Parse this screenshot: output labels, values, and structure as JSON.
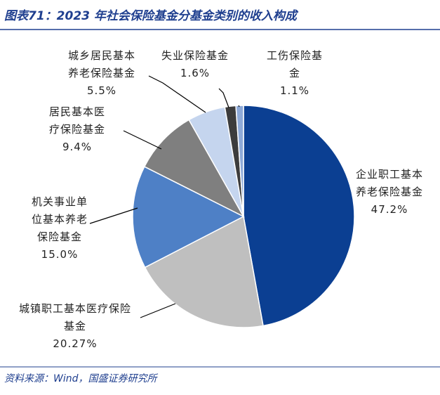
{
  "chart_data": {
    "type": "pie",
    "title": "图表71：2023 年社会保险基金分基金类别的收入构成",
    "source": "资料来源：Wind，国盛证券研究所",
    "categories": [
      "企业职工基本养老保险基金",
      "城镇职工基本医疗保险基金",
      "机关事业单位基本养老保险基金",
      "居民基本医疗保险基金",
      "城乡居民基本养老保险基金",
      "失业保险基金",
      "工伤保险基金"
    ],
    "values": [
      47.2,
      20.27,
      15.0,
      9.4,
      5.5,
      1.6,
      1.1
    ],
    "value_labels": [
      "47.2%",
      "20.27%",
      "15.0%",
      "9.4%",
      "5.5%",
      "1.6%",
      "1.1%"
    ],
    "colors": [
      "#0b3f92",
      "#bfbfbf",
      "#4e80c6",
      "#7f7f7f",
      "#c5d5ee",
      "#3c3c3c",
      "#8eaad8"
    ]
  }
}
